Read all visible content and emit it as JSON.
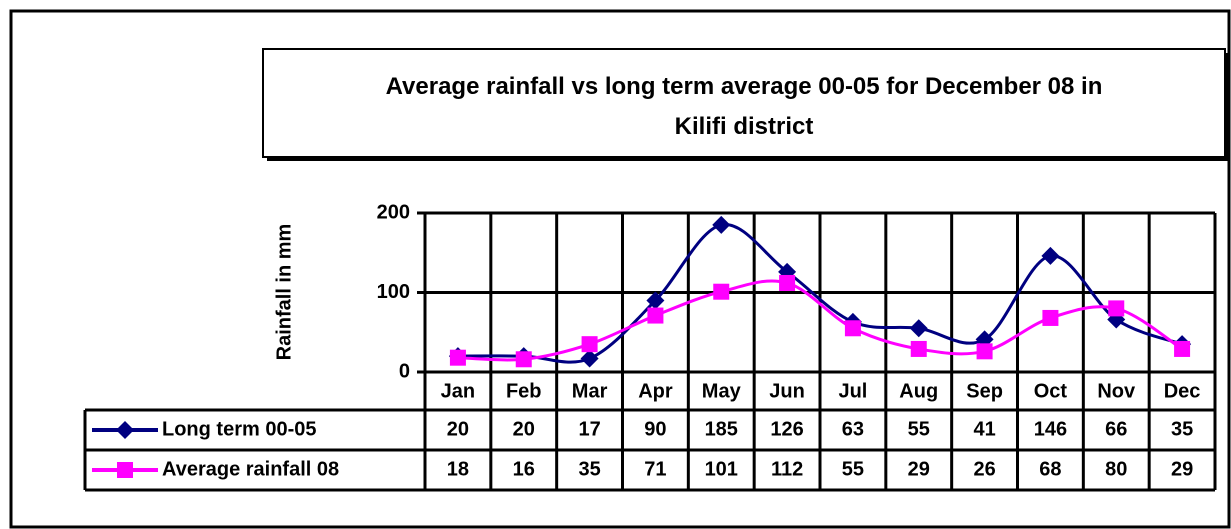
{
  "chart_data": {
    "type": "line",
    "title": "Average rainfall vs long term average 00-05 for December 08 in Kilifi district",
    "y_axis_label": "Rainfall in mm",
    "categories": [
      "Jan",
      "Feb",
      "Mar",
      "Apr",
      "May",
      "Jun",
      "Jul",
      "Aug",
      "Sep",
      "Oct",
      "Nov",
      "Dec"
    ],
    "series": [
      {
        "name": "Long term 00-05",
        "color": "#000080",
        "marker": "diamond",
        "values": [
          20,
          20,
          17,
          90,
          185,
          126,
          63,
          55,
          41,
          146,
          66,
          35
        ]
      },
      {
        "name": "Average rainfall 08",
        "color": "#ff00ff",
        "marker": "square",
        "values": [
          18,
          16,
          35,
          71,
          101,
          112,
          55,
          29,
          26,
          68,
          80,
          29
        ]
      }
    ],
    "ylim": [
      0,
      200
    ],
    "yticks": [
      0,
      100,
      200
    ],
    "grid": true,
    "smooth": true
  }
}
